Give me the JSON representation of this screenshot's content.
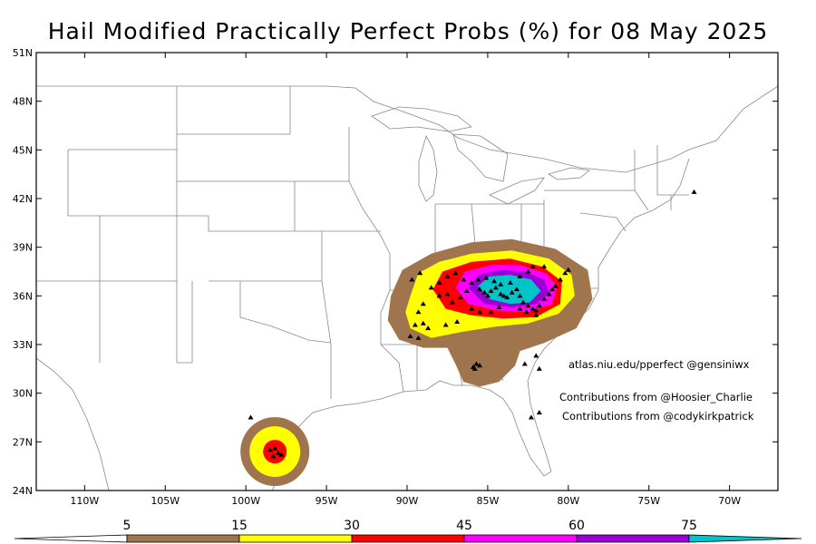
{
  "title": "Hail Modified Practically Perfect Probs (%) for 08 May 2025",
  "map": {
    "lat_labels": [
      "51N",
      "48N",
      "45N",
      "42N",
      "39N",
      "36N",
      "33N",
      "30N",
      "27N",
      "24N"
    ],
    "lon_labels": [
      "110W",
      "105W",
      "100W",
      "95W",
      "90W",
      "85W",
      "80W",
      "75W",
      "70W"
    ],
    "lat_range": [
      24,
      51
    ],
    "lon_range": [
      -113,
      -67
    ],
    "show_borders": true
  },
  "credits": {
    "site": "atlas.niu.edu/pperfect @gensiniwx",
    "contrib1": "Contributions from @Hoosier_Charlie",
    "contrib2": "Contributions from @codykirkpatrick"
  },
  "colorbar": {
    "levels": [
      "5",
      "15",
      "30",
      "45",
      "60",
      "75"
    ],
    "colors": [
      "#a0754d",
      "#ffff00",
      "#ff0000",
      "#ff00ff",
      "#9a00d5",
      "#00c5c8"
    ]
  },
  "colors": {
    "p5": "#a0754d",
    "p15": "#ffff00",
    "p30": "#ff0000",
    "p45": "#ff00ff",
    "p60": "#9a00d5",
    "p75": "#00c5c8",
    "border": "#888888",
    "frame": "#000000"
  },
  "hail_reports": [
    [
      -88.5,
      36.5
    ],
    [
      -88.0,
      36.8
    ],
    [
      -87.5,
      37.2
    ],
    [
      -87.0,
      37.4
    ],
    [
      -86.5,
      37.0
    ],
    [
      -86.0,
      36.8
    ],
    [
      -85.5,
      36.4
    ],
    [
      -85.2,
      36.2
    ],
    [
      -85.0,
      36.0
    ],
    [
      -84.8,
      36.3
    ],
    [
      -84.5,
      36.5
    ],
    [
      -84.2,
      36.1
    ],
    [
      -84.0,
      36.0
    ],
    [
      -83.8,
      35.9
    ],
    [
      -83.5,
      36.2
    ],
    [
      -83.2,
      36.4
    ],
    [
      -83.0,
      36.0
    ],
    [
      -82.8,
      35.6
    ],
    [
      -82.5,
      35.4
    ],
    [
      -82.2,
      35.2
    ],
    [
      -82.0,
      35.1
    ],
    [
      -81.8,
      35.4
    ],
    [
      -81.5,
      35.8
    ],
    [
      -81.2,
      36.1
    ],
    [
      -81.0,
      36.4
    ],
    [
      -80.8,
      36.6
    ],
    [
      -80.5,
      37.0
    ],
    [
      -80.2,
      37.4
    ],
    [
      -80.0,
      37.6
    ],
    [
      -81.5,
      37.8
    ],
    [
      -82.2,
      37.8
    ],
    [
      -82.5,
      37.5
    ],
    [
      -83.0,
      37.2
    ],
    [
      -83.6,
      36.8
    ],
    [
      -84.2,
      36.7
    ],
    [
      -84.6,
      36.9
    ],
    [
      -85.1,
      37.1
    ],
    [
      -85.6,
      37.0
    ],
    [
      -86.3,
      36.3
    ],
    [
      -86.7,
      35.9
    ],
    [
      -87.2,
      35.6
    ],
    [
      -87.5,
      36.1
    ],
    [
      -88.0,
      36.0
    ],
    [
      -89.0,
      35.5
    ],
    [
      -89.3,
      35.0
    ],
    [
      -89.0,
      34.3
    ],
    [
      -88.7,
      34.0
    ],
    [
      -89.5,
      34.2
    ],
    [
      -89.8,
      33.5
    ],
    [
      -89.3,
      33.4
    ],
    [
      -87.6,
      34.2
    ],
    [
      -86.9,
      34.4
    ],
    [
      -86.0,
      35.2
    ],
    [
      -85.5,
      35.0
    ],
    [
      -84.8,
      35.0
    ],
    [
      -84.3,
      35.3
    ],
    [
      -83.0,
      35.2
    ],
    [
      -82.6,
      35.0
    ],
    [
      -82.0,
      34.8
    ],
    [
      -89.7,
      37.0
    ],
    [
      -89.2,
      37.4
    ],
    [
      -85.7,
      31.8
    ],
    [
      -85.9,
      31.6
    ],
    [
      -85.5,
      31.7
    ],
    [
      -85.8,
      31.5
    ],
    [
      -82.0,
      32.3
    ],
    [
      -82.7,
      31.8
    ],
    [
      -81.8,
      31.5
    ],
    [
      -82.3,
      28.5
    ],
    [
      -81.8,
      28.8
    ],
    [
      -98.5,
      26.5
    ],
    [
      -98.2,
      26.6
    ],
    [
      -98.0,
      26.3
    ],
    [
      -97.8,
      26.2
    ],
    [
      -98.3,
      26.1
    ],
    [
      -99.7,
      28.5
    ],
    [
      -72.2,
      42.4
    ]
  ]
}
